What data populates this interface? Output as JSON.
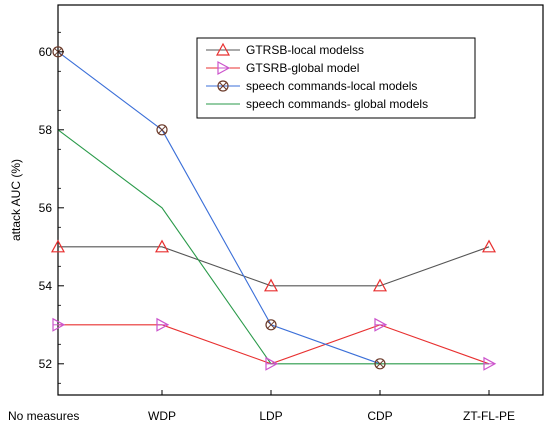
{
  "chart_data": {
    "type": "line",
    "title": "",
    "xlabel": "",
    "ylabel": "attack AUC (%)",
    "categories": [
      "No measures",
      "WDP",
      "LDP",
      "CDP",
      "ZT-FL-PE"
    ],
    "ylim": [
      51.2,
      61.2
    ],
    "yticks": [
      52,
      54,
      56,
      58,
      60
    ],
    "grid": false,
    "legend_position": "top-right",
    "series": [
      {
        "name": "GTRSB-local modelss",
        "values": [
          55,
          55,
          54,
          54,
          55
        ],
        "color": "#e83030",
        "line_color": "#555555",
        "marker": "triangle-up"
      },
      {
        "name": "GTSRB-global model",
        "values": [
          53,
          53,
          52,
          53,
          52
        ],
        "color": "#cc55cc",
        "line_color": "#e83030",
        "marker": "triangle-right"
      },
      {
        "name": "speech commands-local models",
        "values": [
          60,
          58,
          53,
          52,
          null
        ],
        "color": "#6b3a2a",
        "line_color": "#3b6fd8",
        "marker": "circle-cross"
      },
      {
        "name": "speech commands- global models",
        "values": [
          58,
          56,
          52,
          52,
          52
        ],
        "color": "#2a9a4a",
        "line_color": "#2a9a4a",
        "marker": "none"
      }
    ]
  }
}
